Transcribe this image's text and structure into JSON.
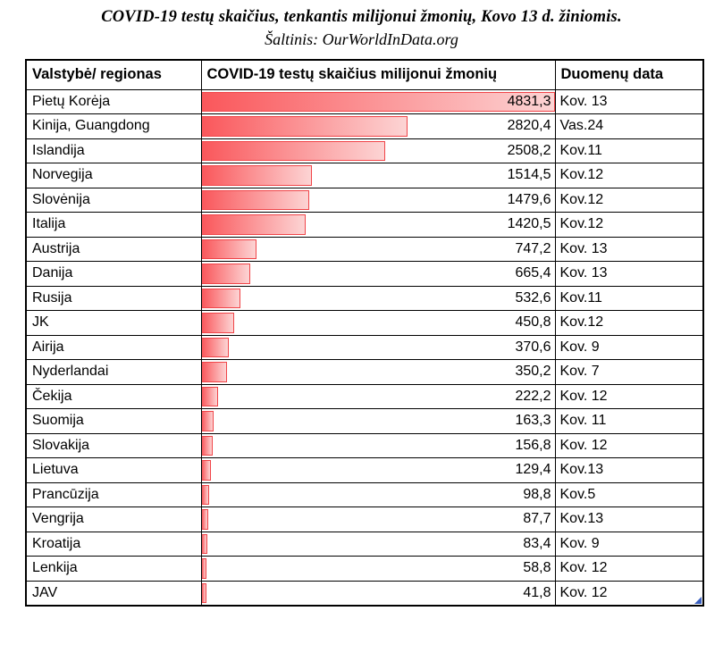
{
  "title": "COVID-19 testų skaičius, tenkantis milijonui žmonių, Kovo 13 d. žiniomis.",
  "subtitle": "Šaltinis: OurWorldInData.org",
  "table": {
    "columns": [
      "Valstybė/ regionas",
      "COVID-19 testų skaičius milijonui žmonių",
      "Duomenų data"
    ],
    "max_value": 4831.3,
    "rows": [
      {
        "country": "Pietų Korėja",
        "value_label": "4831,3",
        "value": 4831.3,
        "date": "Kov. 13"
      },
      {
        "country": "Kinija, Guangdong",
        "value_label": "2820,4",
        "value": 2820.4,
        "date": "Vas.24"
      },
      {
        "country": "Islandija",
        "value_label": "2508,2",
        "value": 2508.2,
        "date": "Kov.11"
      },
      {
        "country": "Norvegija",
        "value_label": "1514,5",
        "value": 1514.5,
        "date": "Kov.12"
      },
      {
        "country": "Slovėnija",
        "value_label": "1479,6",
        "value": 1479.6,
        "date": "Kov.12"
      },
      {
        "country": "Italija",
        "value_label": "1420,5",
        "value": 1420.5,
        "date": "Kov.12"
      },
      {
        "country": "Austrija",
        "value_label": "747,2",
        "value": 747.2,
        "date": "Kov. 13"
      },
      {
        "country": "Danija",
        "value_label": "665,4",
        "value": 665.4,
        "date": "Kov. 13"
      },
      {
        "country": "Rusija",
        "value_label": "532,6",
        "value": 532.6,
        "date": "Kov.11"
      },
      {
        "country": "JK",
        "value_label": "450,8",
        "value": 450.8,
        "date": "Kov.12"
      },
      {
        "country": "Airija",
        "value_label": "370,6",
        "value": 370.6,
        "date": "Kov. 9"
      },
      {
        "country": "Nyderlandai",
        "value_label": "350,2",
        "value": 350.2,
        "date": "Kov. 7"
      },
      {
        "country": "Čekija",
        "value_label": "222,2",
        "value": 222.2,
        "date": "Kov. 12"
      },
      {
        "country": "Suomija",
        "value_label": "163,3",
        "value": 163.3,
        "date": "Kov. 11"
      },
      {
        "country": "Slovakija",
        "value_label": "156,8",
        "value": 156.8,
        "date": "Kov. 12"
      },
      {
        "country": "Lietuva",
        "value_label": "129,4",
        "value": 129.4,
        "date": "Kov.13"
      },
      {
        "country": "Prancūzija",
        "value_label": "98,8",
        "value": 98.8,
        "date": "Kov.5"
      },
      {
        "country": "Vengrija",
        "value_label": "87,7",
        "value": 87.7,
        "date": "Kov.13"
      },
      {
        "country": "Kroatija",
        "value_label": "83,4",
        "value": 83.4,
        "date": "Kov. 9"
      },
      {
        "country": "Lenkija",
        "value_label": "58,8",
        "value": 58.8,
        "date": "Kov. 12"
      },
      {
        "country": "JAV",
        "value_label": "41,8",
        "value": 41.8,
        "date": "Kov. 12"
      }
    ]
  },
  "colors": {
    "bar_gradient_start": "#fa575b",
    "bar_gradient_end": "#fcd4d4",
    "bar_border": "#f04448",
    "table_border": "#000000",
    "corner_marker": "#3a60c0"
  },
  "chart_data": {
    "type": "bar",
    "orientation": "horizontal",
    "title": "COVID-19 testų skaičius, tenkantis milijonui žmonių, Kovo 13 d. žiniomis.",
    "source": "Šaltinis: OurWorldInData.org",
    "categories": [
      "Pietų Korėja",
      "Kinija, Guangdong",
      "Islandija",
      "Norvegija",
      "Slovėnija",
      "Italija",
      "Austrija",
      "Danija",
      "Rusija",
      "JK",
      "Airija",
      "Nyderlandai",
      "Čekija",
      "Suomija",
      "Slovakija",
      "Lietuva",
      "Prancūzija",
      "Vengrija",
      "Kroatija",
      "Lenkija",
      "JAV"
    ],
    "values": [
      4831.3,
      2820.4,
      2508.2,
      1514.5,
      1479.6,
      1420.5,
      747.2,
      665.4,
      532.6,
      450.8,
      370.6,
      350.2,
      222.2,
      163.3,
      156.8,
      129.4,
      98.8,
      87.7,
      83.4,
      58.8,
      41.8
    ],
    "data_dates": [
      "Kov. 13",
      "Vas.24",
      "Kov.11",
      "Kov.12",
      "Kov.12",
      "Kov.12",
      "Kov. 13",
      "Kov. 13",
      "Kov.11",
      "Kov.12",
      "Kov. 9",
      "Kov. 7",
      "Kov. 12",
      "Kov. 11",
      "Kov. 12",
      "Kov.13",
      "Kov.5",
      "Kov.13",
      "Kov. 9",
      "Kov. 12",
      "Kov. 12"
    ],
    "value_axis_range": [
      0,
      4831.3
    ],
    "grid": false,
    "legend": false,
    "bars_rendered_as": "in-cell data bars, red-to-pink gradient, length proportional to value"
  }
}
